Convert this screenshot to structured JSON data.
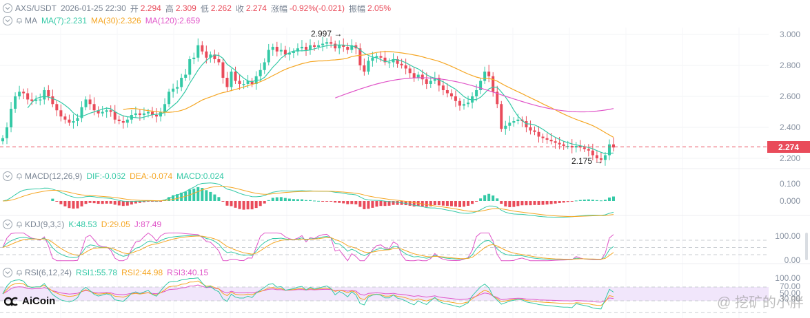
{
  "header": {
    "symbol": "AXS/USDT",
    "datetime": "2026-01-25 22:30",
    "open_label": "开",
    "open": "2.294",
    "high_label": "高",
    "high": "2.309",
    "low_label": "低",
    "low": "2.262",
    "close_label": "收",
    "close": "2.274",
    "change_label": "涨幅",
    "change": "-0.92%(-0.021)",
    "amplitude_label": "振幅",
    "amplitude": "2.05%"
  },
  "ma_legend": {
    "name": "MA",
    "ma7": "MA(7):2.231",
    "ma30": "MA(30):2.326",
    "ma120": "MA(120):2.659"
  },
  "macd_legend": {
    "name": "MACD(12,26,9)",
    "dif": "DIF:-0.062",
    "dea": "DEA:-0.074",
    "macd": "MACD:0.024"
  },
  "kdj_legend": {
    "name": "KDJ(9,3,3)",
    "k": "K:48.53",
    "d": "D:29.05",
    "j": "J:87.49"
  },
  "rsi_legend": {
    "name": "RSI(6,12,24)",
    "rsi1": "RSI1:55.78",
    "rsi2": "RSI2:44.98",
    "rsi3": "RSI3:40.15"
  },
  "price_axis": [
    "3.000",
    "2.800",
    "2.600",
    "2.400",
    "2.200"
  ],
  "current_price_tag": "2.274",
  "macd_axis": [
    "0.100",
    "0.000"
  ],
  "kdj_axis": [
    "100.00",
    "0.00"
  ],
  "rsi_axis": [
    "100.00",
    "70.00",
    "50.00",
    "30.00"
  ],
  "annotations": {
    "high_marker": "2.997 →",
    "low_marker": "2.175 →"
  },
  "branding": {
    "logo": "AiCoin",
    "watermark": "@ 挖矿的小胖"
  },
  "colors": {
    "up": "#34c9a6",
    "down": "#e94b5a",
    "ma7": "#34c9a6",
    "ma30": "#f5a623",
    "ma120": "#e055c8"
  },
  "chart_data": [
    {
      "type": "candlestick",
      "title": "AXS/USDT",
      "ylabel": "Price (USDT)",
      "ylim": [
        2.13,
        3.06
      ],
      "yticks": [
        3.0,
        2.8,
        2.6,
        2.4,
        2.2
      ],
      "close_series_approx": [
        2.33,
        2.4,
        2.52,
        2.6,
        2.63,
        2.62,
        2.58,
        2.57,
        2.58,
        2.58,
        2.64,
        2.6,
        2.55,
        2.51,
        2.47,
        2.45,
        2.43,
        2.44,
        2.46,
        2.53,
        2.58,
        2.55,
        2.51,
        2.49,
        2.5,
        2.51,
        2.5,
        2.45,
        2.44,
        2.43,
        2.45,
        2.48,
        2.49,
        2.48,
        2.49,
        2.5,
        2.48,
        2.47,
        2.5,
        2.55,
        2.63,
        2.65,
        2.66,
        2.72,
        2.74,
        2.84,
        2.85,
        2.93,
        2.89,
        2.85,
        2.87,
        2.84,
        2.82,
        2.72,
        2.66,
        2.76,
        2.7,
        2.68,
        2.68,
        2.7,
        2.68,
        2.73,
        2.77,
        2.82,
        2.9,
        2.92,
        2.89,
        2.9,
        2.87,
        2.88,
        2.89,
        2.91,
        2.92,
        2.9,
        2.93,
        2.92,
        2.93,
        2.94,
        2.95,
        2.94,
        2.91,
        2.93,
        2.92,
        2.9,
        2.93,
        2.91,
        2.8,
        2.76,
        2.83,
        2.85,
        2.86,
        2.85,
        2.82,
        2.82,
        2.84,
        2.81,
        2.8,
        2.78,
        2.75,
        2.72,
        2.74,
        2.71,
        2.68,
        2.7,
        2.72,
        2.67,
        2.64,
        2.62,
        2.6,
        2.57,
        2.54,
        2.55,
        2.56,
        2.6,
        2.64,
        2.7,
        2.76,
        2.73,
        2.63,
        2.55,
        2.39,
        2.41,
        2.43,
        2.44,
        2.45,
        2.44,
        2.4,
        2.38,
        2.37,
        2.34,
        2.33,
        2.32,
        2.31,
        2.3,
        2.29,
        2.28,
        2.28,
        2.27,
        2.28,
        2.27,
        2.26,
        2.25,
        2.22,
        2.2,
        2.19,
        2.22,
        2.29,
        2.27
      ],
      "series": [
        {
          "name": "MA(7)",
          "last": 2.231
        },
        {
          "name": "MA(30)",
          "last": 2.326
        },
        {
          "name": "MA(120)",
          "last": 2.659
        }
      ],
      "annotations": [
        {
          "label": "2.997",
          "type": "high"
        },
        {
          "label": "2.175",
          "type": "low"
        }
      ],
      "current_price": 2.274
    },
    {
      "type": "bar+line",
      "title": "MACD(12,26,9)",
      "ylim": [
        -0.05,
        0.13
      ],
      "yticks": [
        0.1,
        0.0
      ],
      "series": [
        {
          "name": "DIF",
          "last": -0.062
        },
        {
          "name": "DEA",
          "last": -0.074
        },
        {
          "name": "MACD",
          "last": 0.024
        }
      ]
    },
    {
      "type": "line",
      "title": "KDJ(9,3,3)",
      "ylim": [
        0,
        100
      ],
      "yticks": [
        100,
        0
      ],
      "series": [
        {
          "name": "K",
          "last": 48.53
        },
        {
          "name": "D",
          "last": 29.05
        },
        {
          "name": "J",
          "last": 87.49
        }
      ]
    },
    {
      "type": "line",
      "title": "RSI(6,12,24)",
      "ylim": [
        0,
        100
      ],
      "yticks": [
        100,
        70,
        50,
        30
      ],
      "series": [
        {
          "name": "RSI1",
          "last": 55.78
        },
        {
          "name": "RSI2",
          "last": 44.98
        },
        {
          "name": "RSI3",
          "last": 40.15
        }
      ]
    }
  ]
}
